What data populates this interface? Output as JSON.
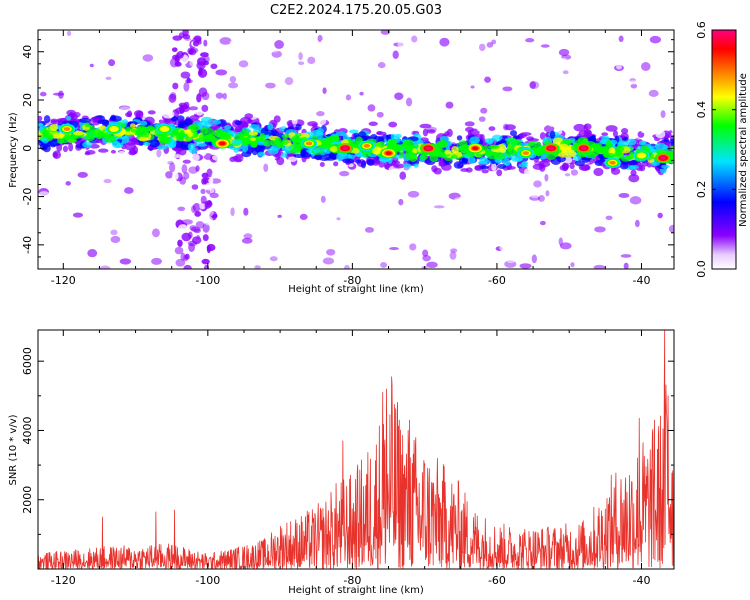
{
  "title": "C2E2.2024.175.20.05.G03",
  "chart_data": [
    {
      "type": "heatmap",
      "title": "C2E2.2024.175.20.05.G03",
      "xlabel": "Height of straight line (km)",
      "ylabel": "Frequency (Hz)",
      "xlim": [
        -123.5,
        -35.5
      ],
      "ylim": [
        -50,
        49
      ],
      "x_ticks": [
        -120,
        -100,
        -80,
        -60,
        -40
      ],
      "y_ticks": [
        -40,
        -20,
        0,
        20,
        40
      ],
      "colorbar": {
        "label": "Normalized spectral amplitude",
        "range": [
          0.0,
          0.6
        ],
        "ticks": [
          0.0,
          0.2,
          0.4,
          0.6
        ],
        "colormap": [
          "#ffffff",
          "#8a00ff",
          "#0000ff",
          "#00e5ff",
          "#00ff00",
          "#ffff00",
          "#ff8000",
          "#ff0000",
          "#ff007f"
        ]
      },
      "features": {
        "band_center_hz": [
          {
            "x": -123,
            "y": 6
          },
          {
            "x": -110,
            "y": 7
          },
          {
            "x": -100,
            "y": 5
          },
          {
            "x": -90,
            "y": 3
          },
          {
            "x": -80,
            "y": 1
          },
          {
            "x": -70,
            "y": -1
          },
          {
            "x": -60,
            "y": -1
          },
          {
            "x": -50,
            "y": 0
          },
          {
            "x": -40,
            "y": -2
          },
          {
            "x": -36,
            "y": -3
          }
        ],
        "band_halfwidth_hz": 7,
        "vertical_noise_columns_km": [
          -103.5,
          -100.5
        ],
        "hotspots": [
          {
            "x": -119.5,
            "y": 8,
            "amp": 0.45
          },
          {
            "x": -113,
            "y": 8,
            "amp": 0.4
          },
          {
            "x": -106,
            "y": 8,
            "amp": 0.42
          },
          {
            "x": -98,
            "y": 2,
            "amp": 0.5
          },
          {
            "x": -86,
            "y": 2,
            "amp": 0.45
          },
          {
            "x": -81,
            "y": 0,
            "amp": 0.58
          },
          {
            "x": -78,
            "y": 1,
            "amp": 0.45
          },
          {
            "x": -75,
            "y": -2,
            "amp": 0.55
          },
          {
            "x": -69.5,
            "y": 0,
            "amp": 0.58
          },
          {
            "x": -63,
            "y": 0,
            "amp": 0.5
          },
          {
            "x": -56,
            "y": -2,
            "amp": 0.45
          },
          {
            "x": -52.5,
            "y": 0,
            "amp": 0.58
          },
          {
            "x": -48,
            "y": 0,
            "amp": 0.58
          },
          {
            "x": -44,
            "y": -6,
            "amp": 0.45
          },
          {
            "x": -40,
            "y": -3,
            "amp": 0.4
          },
          {
            "x": -37,
            "y": -4,
            "amp": 0.58
          }
        ]
      }
    },
    {
      "type": "line",
      "xlabel": "Height of straight line (km)",
      "ylabel": "SNR (10 * v/v)",
      "xlim": [
        -123.5,
        -35.5
      ],
      "ylim": [
        0,
        6900
      ],
      "x_ticks": [
        -120,
        -100,
        -80,
        -60,
        -40
      ],
      "y_ticks": [
        2000,
        4000,
        6000
      ],
      "color": "#e8332c",
      "envelope": {
        "x": [
          -123.5,
          -115,
          -110,
          -105,
          -100,
          -95,
          -92,
          -90,
          -87,
          -84,
          -82,
          -80,
          -78,
          -76,
          -74.5,
          -73,
          -71,
          -69,
          -67,
          -65,
          -63,
          -60,
          -57,
          -54,
          -51,
          -48,
          -46,
          -44,
          -42,
          -40,
          -38,
          -37,
          -36.5,
          -35.5
        ],
        "y": [
          450,
          650,
          700,
          750,
          450,
          700,
          900,
          1400,
          1600,
          2000,
          2600,
          2800,
          3500,
          4600,
          5400,
          4500,
          3900,
          3400,
          3000,
          2500,
          1800,
          1350,
          1250,
          1250,
          1300,
          1450,
          2000,
          2800,
          3400,
          3800,
          4200,
          5000,
          6900,
          4800
        ]
      },
      "spikes": [
        {
          "x": -114.6,
          "y": 1500
        },
        {
          "x": -107.2,
          "y": 1650
        },
        {
          "x": -104.6,
          "y": 1700
        },
        {
          "x": -81.3,
          "y": 3700
        },
        {
          "x": -75.8,
          "y": 5100
        },
        {
          "x": -75.3,
          "y": 5200
        },
        {
          "x": -74.6,
          "y": 5550
        },
        {
          "x": -73.8,
          "y": 4500
        },
        {
          "x": -72.1,
          "y": 4300
        },
        {
          "x": -40.3,
          "y": 4350
        },
        {
          "x": -38.2,
          "y": 4300
        },
        {
          "x": -36.8,
          "y": 6950
        },
        {
          "x": -36.3,
          "y": 5000
        }
      ]
    }
  ]
}
